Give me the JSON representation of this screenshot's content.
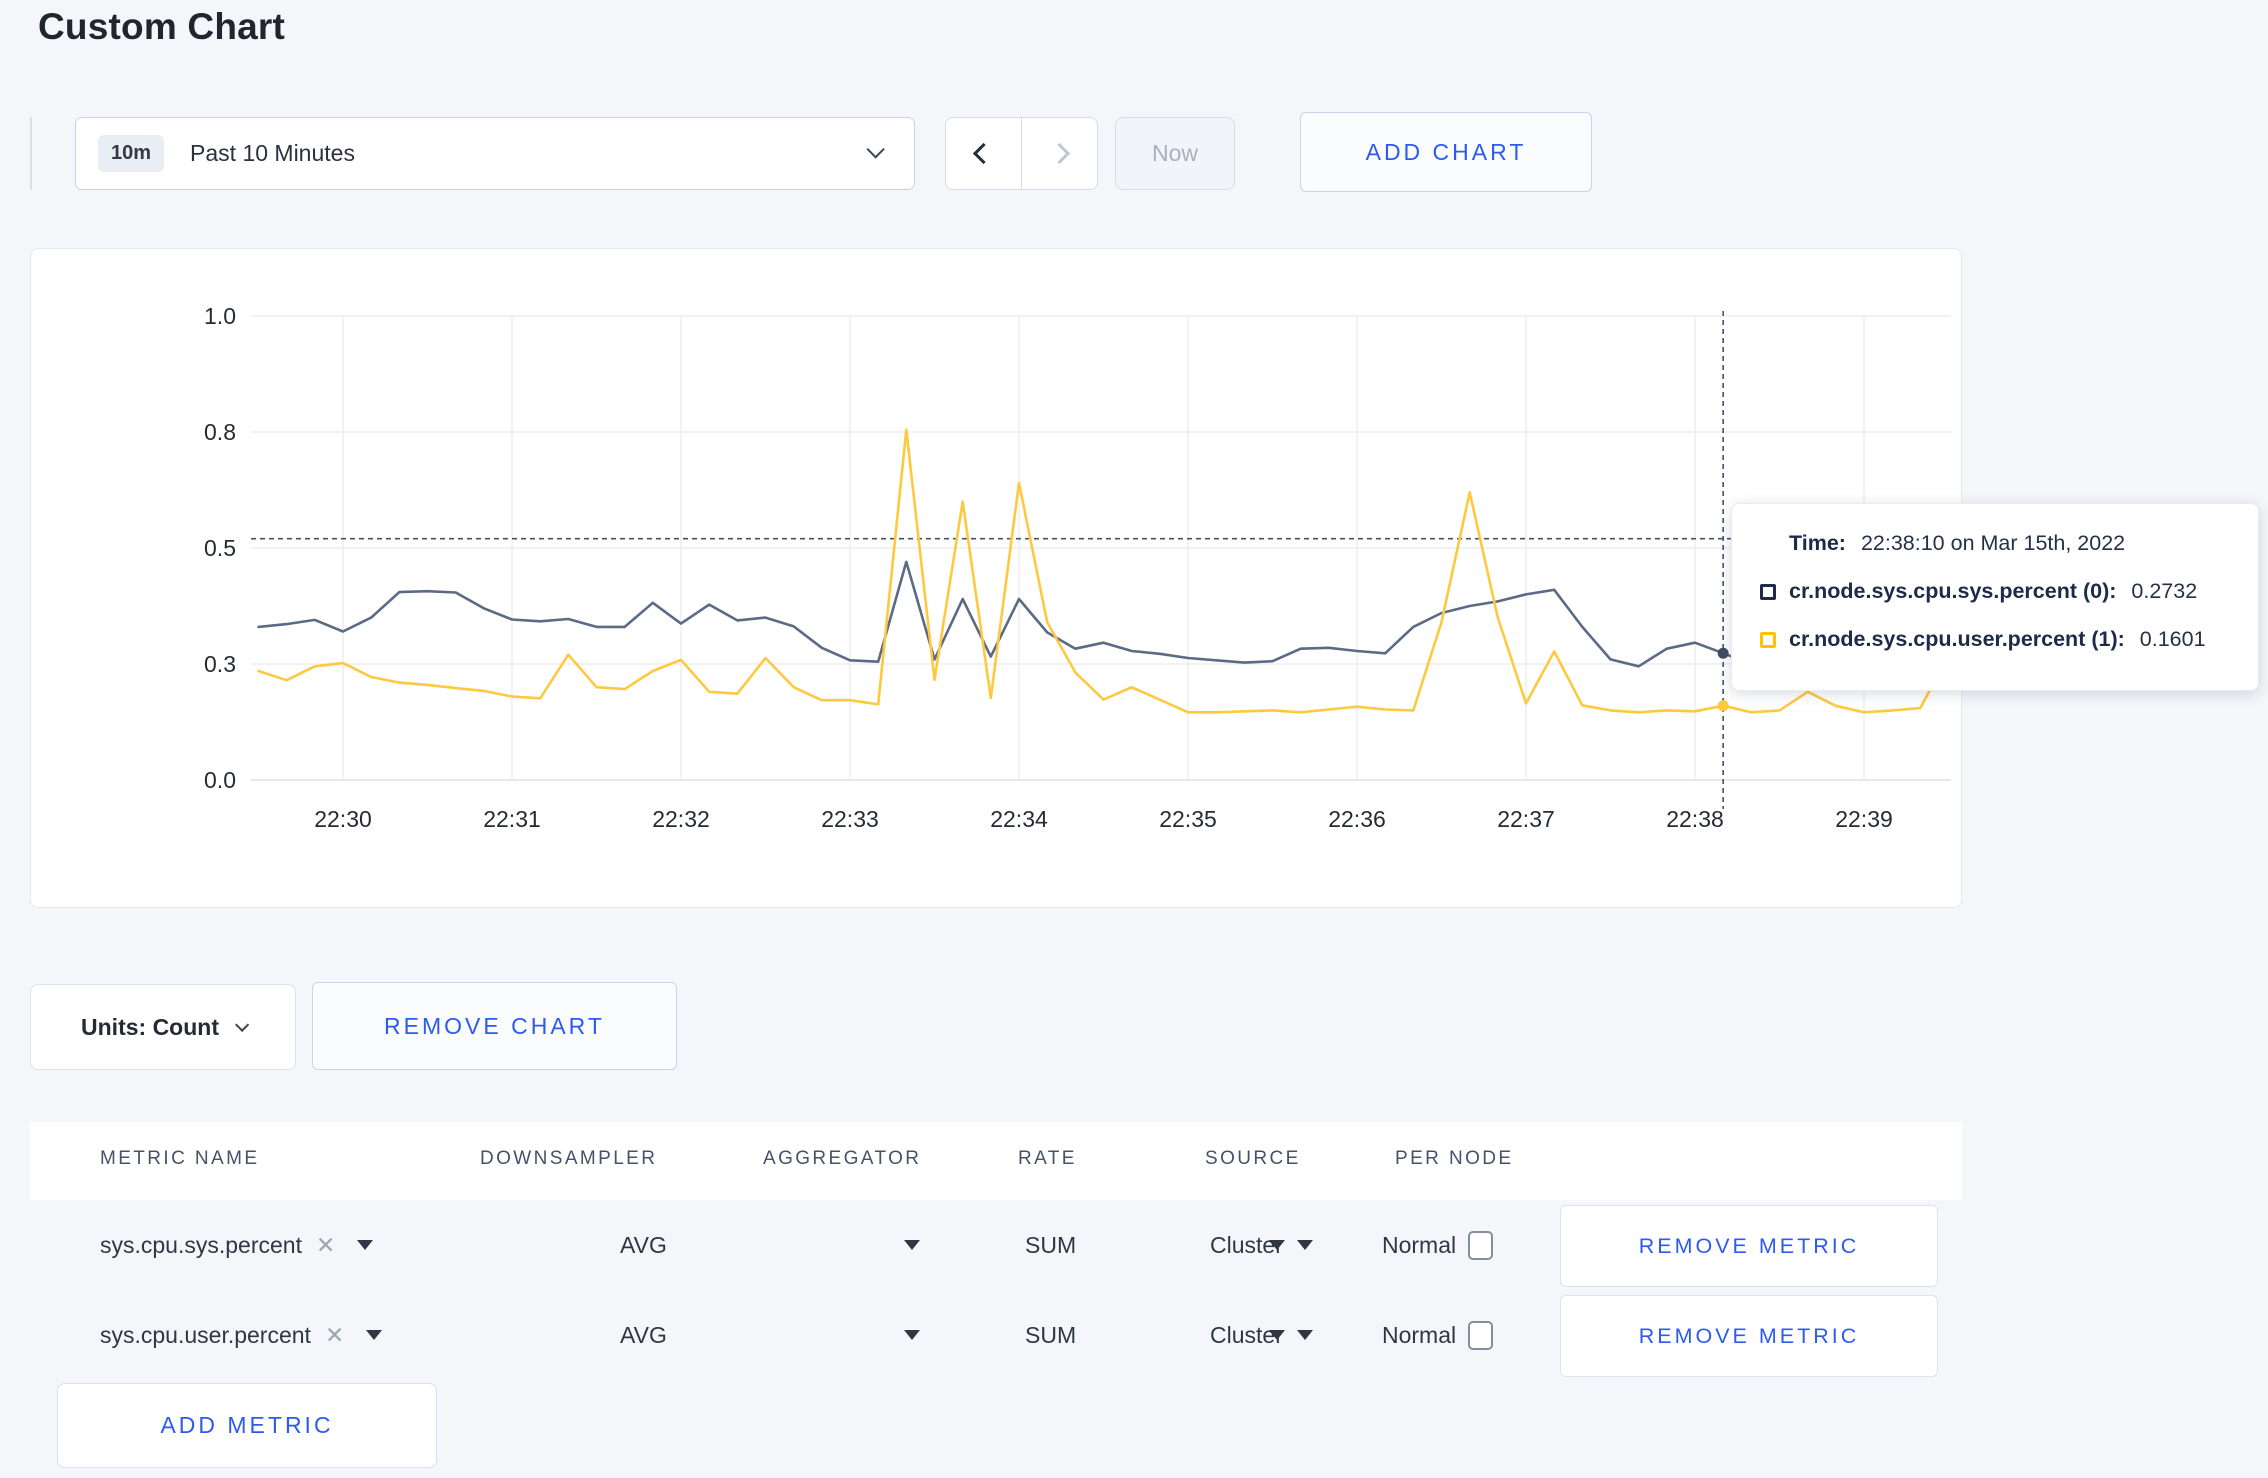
{
  "page": {
    "title": "Custom Chart"
  },
  "toolbar": {
    "time_badge": "10m",
    "time_label": "Past 10 Minutes",
    "now_label": "Now",
    "add_chart_label": "ADD CHART"
  },
  "chart_controls": {
    "units_label": "Units: Count",
    "remove_chart_label": "REMOVE CHART",
    "add_metric_label": "ADD METRIC"
  },
  "tooltip": {
    "time_label": "Time:",
    "time_value": "22:38:10 on Mar 15th, 2022",
    "series": [
      {
        "label": "cr.node.sys.cpu.sys.percent (0):",
        "value": "0.2732",
        "color": "#1D2B49"
      },
      {
        "label": "cr.node.sys.cpu.user.percent (1):",
        "value": "0.1601",
        "color": "#FFC400"
      }
    ]
  },
  "metrics_table": {
    "headers": [
      "METRIC NAME",
      "DOWNSAMPLER",
      "AGGREGATOR",
      "RATE",
      "SOURCE",
      "PER NODE"
    ],
    "rows": [
      {
        "metric_name": "sys.cpu.sys.percent",
        "downsampler": "AVG",
        "aggregator": "SUM",
        "rate": "Normal",
        "source": "Cluster",
        "per_node_checked": false,
        "remove_label": "REMOVE METRIC"
      },
      {
        "metric_name": "sys.cpu.user.percent",
        "downsampler": "AVG",
        "aggregator": "SUM",
        "rate": "Normal",
        "source": "Cluster",
        "per_node_checked": false,
        "remove_label": "REMOVE METRIC"
      }
    ]
  },
  "chart_data": {
    "type": "line",
    "title": "",
    "xlabel": "",
    "ylabel": "",
    "ylim": [
      0,
      1
    ],
    "grid": true,
    "legend_position": "none",
    "x_ticks": [
      "22:30",
      "22:31",
      "22:32",
      "22:33",
      "22:34",
      "22:35",
      "22:36",
      "22:37",
      "22:38",
      "22:39"
    ],
    "y_ticks": {
      "values": [
        0,
        0.25,
        0.5,
        0.75,
        1.0
      ],
      "labels": [
        "0.0",
        "0.3",
        "0.5",
        "0.8",
        "1.0"
      ]
    },
    "x_start_time": "22:29:30",
    "x_interval_seconds": 10,
    "first_point_offset_seconds": -30,
    "series": [
      {
        "name": "cr.node.sys.cpu.sys.percent",
        "color": "#5B6A85",
        "values": [
          0.33,
          0.336,
          0.345,
          0.32,
          0.35,
          0.405,
          0.407,
          0.404,
          0.37,
          0.346,
          0.342,
          0.347,
          0.33,
          0.33,
          0.382,
          0.337,
          0.378,
          0.344,
          0.35,
          0.331,
          0.285,
          0.258,
          0.255,
          0.47,
          0.26,
          0.39,
          0.266,
          0.39,
          0.318,
          0.283,
          0.296,
          0.278,
          0.272,
          0.263,
          0.258,
          0.253,
          0.256,
          0.283,
          0.285,
          0.278,
          0.273,
          0.33,
          0.36,
          0.375,
          0.385,
          0.4,
          0.41,
          0.33,
          0.26,
          0.245,
          0.283,
          0.296,
          0.2732,
          0.25,
          0.262,
          0.3,
          0.308,
          0.295,
          0.3,
          0.305,
          0.31
        ]
      },
      {
        "name": "cr.node.sys.cpu.user.percent",
        "color": "#FFC93F",
        "values": [
          0.235,
          0.215,
          0.245,
          0.252,
          0.222,
          0.21,
          0.205,
          0.198,
          0.192,
          0.18,
          0.176,
          0.27,
          0.2,
          0.196,
          0.235,
          0.259,
          0.19,
          0.186,
          0.263,
          0.2,
          0.172,
          0.172,
          0.163,
          0.755,
          0.216,
          0.6,
          0.177,
          0.64,
          0.34,
          0.232,
          0.173,
          0.2,
          0.173,
          0.146,
          0.146,
          0.148,
          0.15,
          0.146,
          0.152,
          0.158,
          0.152,
          0.15,
          0.34,
          0.62,
          0.35,
          0.165,
          0.277,
          0.161,
          0.15,
          0.146,
          0.15,
          0.148,
          0.1601,
          0.146,
          0.15,
          0.19,
          0.16,
          0.146,
          0.15,
          0.155,
          0.27
        ]
      }
    ],
    "crosshair": {
      "time": "22:38:10",
      "x_offset_seconds": 520,
      "hline_value": 0.52,
      "points": [
        {
          "value": 0.2732,
          "color": "#3E4B64"
        },
        {
          "value": 0.1601,
          "color": "#FFC93F"
        }
      ]
    }
  }
}
